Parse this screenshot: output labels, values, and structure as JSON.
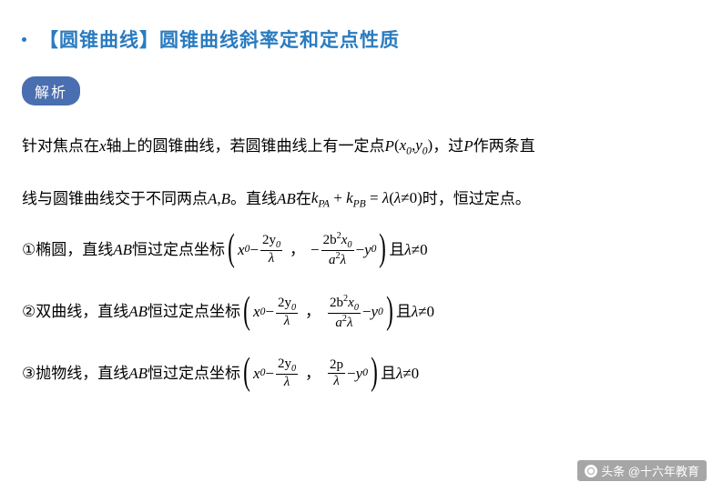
{
  "title": {
    "bracket_tag": "【圆锥曲线】",
    "text": "圆锥曲线斜率定和定点性质"
  },
  "analysis_label": "解析",
  "body": {
    "intro_prefix": "针对焦点在 ",
    "axis_var": "x",
    "intro_mid1": " 轴上的圆锥曲线，若圆锥曲线上有一定点 ",
    "point_P": "P",
    "px0": "x",
    "py0": "y",
    "sub0": "0",
    "intro_mid2": "，过 ",
    "intro_after_P": " 作两条直",
    "line2_prefix": "线与圆锥曲线交于不同两点 ",
    "points_AB": "A,B",
    "line2_mid1": " 。直线 ",
    "line_AB": "AB",
    "line2_mid2": " 在 ",
    "k_PA": "k",
    "sub_PA": "PA",
    "sub_PB": "PB",
    "plus": "+",
    "eq": "=",
    "lambda": "λ",
    "neq0": "≠0",
    "line2_suffix": "时，恒过定点。"
  },
  "cases": {
    "pass_phrase": " 恒过定点坐标 ",
    "and_text": " 且  ",
    "lambda_cond": "λ≠0",
    "items": [
      {
        "num": "①",
        "name": "椭圆",
        "sign_b": "neg"
      },
      {
        "num": "②",
        "name": "双曲线",
        "sign_b": "pos"
      },
      {
        "num": "③",
        "name": "抛物线",
        "sign_b": "parabola"
      }
    ],
    "frac1_num": "2y",
    "ellipse_num": "2b",
    "ellipse_den": "a",
    "parabola_num": "2p",
    "x0": "x",
    "y0": "y",
    "sub0": "0",
    "lambda": "λ",
    "sup2": "2",
    "comma": "，",
    "minus": "−",
    "line_AB": "AB",
    "line_prefix": "，直线 "
  },
  "watermark": "头条 @十六年教育"
}
